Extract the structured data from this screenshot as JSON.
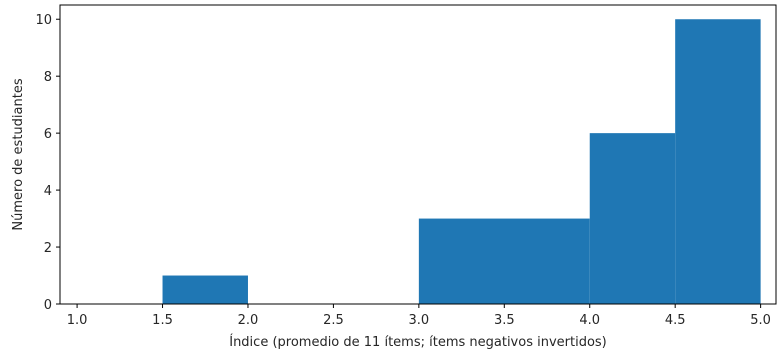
{
  "chart_data": {
    "type": "histogram",
    "bin_edges": [
      1.5,
      2.0,
      3.0,
      4.0,
      4.5,
      5.0
    ],
    "values": [
      1,
      0,
      3,
      6,
      10
    ],
    "bar_color": "#1f77b4",
    "xlabel": "Índice (promedio de 11 ítems; ítems negativos invertidos)",
    "ylabel": "Número de estudiantes",
    "xlim": [
      0.9,
      5.09
    ],
    "ylim": [
      0,
      10.5
    ],
    "x_ticks": [
      1.0,
      1.5,
      2.0,
      2.5,
      3.0,
      3.5,
      4.0,
      4.5,
      5.0
    ],
    "x_tick_labels": [
      "1.0",
      "1.5",
      "2.0",
      "2.5",
      "3.0",
      "3.5",
      "4.0",
      "4.5",
      "5.0"
    ],
    "y_ticks": [
      0,
      2,
      4,
      6,
      8,
      10
    ],
    "y_tick_labels": [
      "0",
      "2",
      "4",
      "6",
      "8",
      "10"
    ],
    "grid": false,
    "legend": "none"
  }
}
